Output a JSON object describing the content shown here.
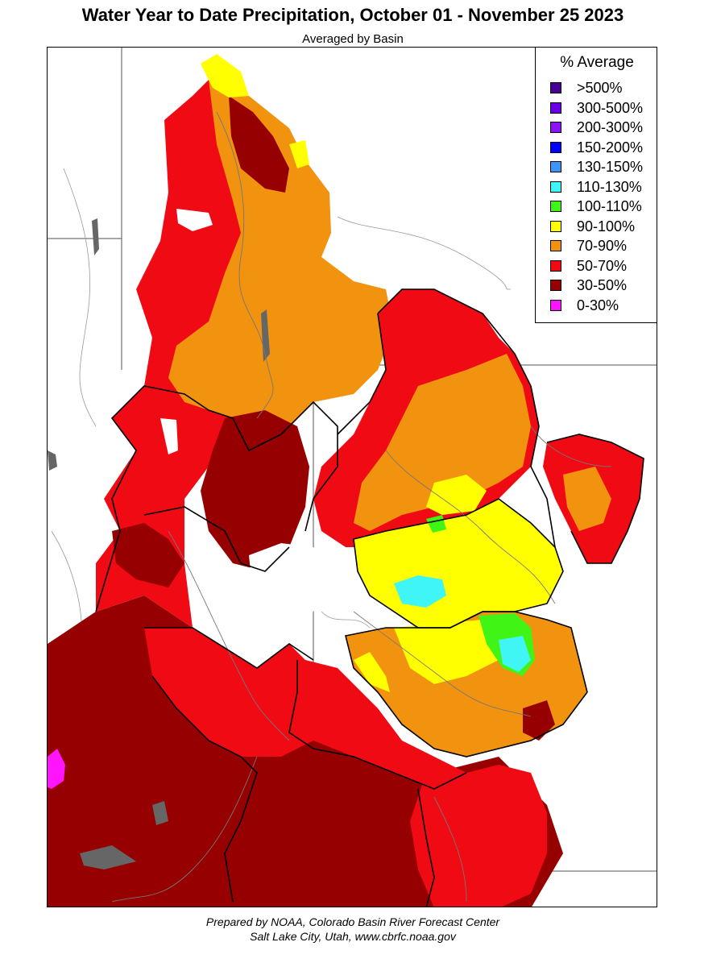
{
  "title": "Water Year to Date Precipitation, October 01  - November 25 2023",
  "subtitle": "Averaged by Basin",
  "legend": {
    "title": "% Average",
    "items": [
      {
        "label": ">500%",
        "color": "#4b0095"
      },
      {
        "label": "300-500%",
        "color": "#6a00e6"
      },
      {
        "label": "200-300%",
        "color": "#8b14f5"
      },
      {
        "label": "150-200%",
        "color": "#0000ff"
      },
      {
        "label": "130-150%",
        "color": "#3c96ff"
      },
      {
        "label": "110-130%",
        "color": "#40f5f5"
      },
      {
        "label": "100-110%",
        "color": "#40f516"
      },
      {
        "label": "90-100%",
        "color": "#ffff00"
      },
      {
        "label": "70-90%",
        "color": "#f2930f"
      },
      {
        "label": "50-70%",
        "color": "#f00a14"
      },
      {
        "label": "30-50%",
        "color": "#960000"
      },
      {
        "label": "0-30%",
        "color": "#ff14ff"
      }
    ]
  },
  "credit": {
    "line1": "Prepared by NOAA, Colorado Basin River Forecast Center",
    "line2": "Salt Lake City, Utah, www.cbrfc.noaa.gov"
  }
}
